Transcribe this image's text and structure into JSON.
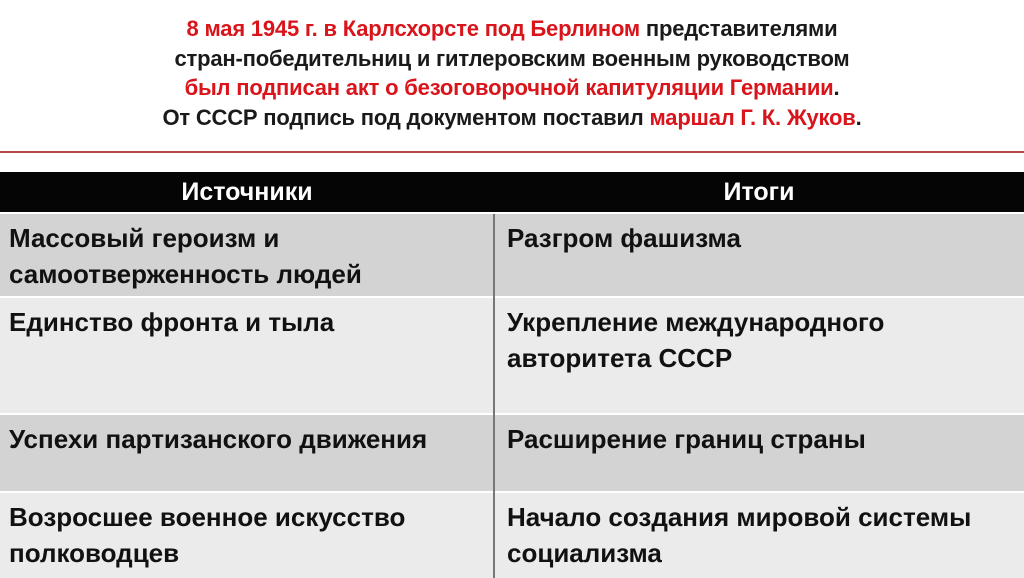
{
  "intro": {
    "line1_red": "8 мая 1945 г. в Карлсхорсте под Берлином",
    "line1_black": " представителями",
    "line2": "стран-победительниц и гитлеровским военным руководством",
    "line3_red": "был подписан акт о безоговорочной капитуляции Германии",
    "line3_end": ".",
    "line4_black": "От СССР подпись под документом поставил ",
    "line4_red": "маршал Г. К. Жуков",
    "line4_end": ".",
    "accent_color": "#d9141b"
  },
  "table": {
    "headers": [
      "Источники",
      "Итоги"
    ],
    "rows": [
      [
        "Массовый героизм и самоотверженность людей",
        "Разгром фашизма"
      ],
      [
        "Единство фронта и тыла",
        "Укрепление международного авторитета СССР"
      ],
      [
        "Успехи партизанского движения",
        "Расширение границ страны"
      ],
      [
        "Возросшее военное искусство полководцев",
        "Начало создания мировой системы социализма"
      ]
    ]
  }
}
